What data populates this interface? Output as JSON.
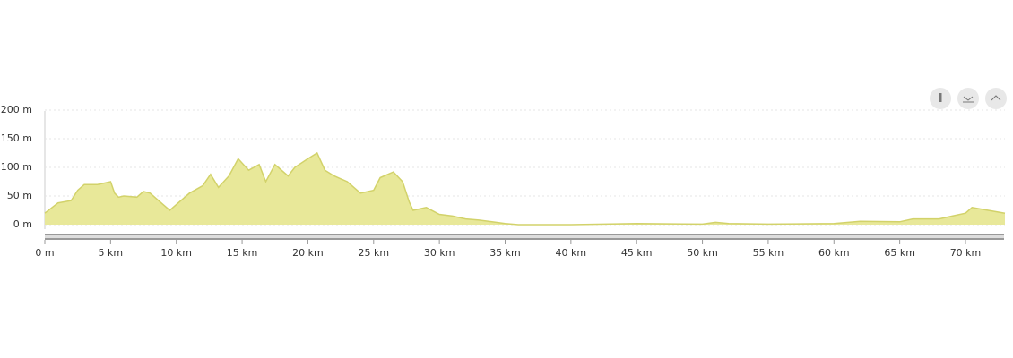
{
  "chart_data": {
    "type": "area",
    "color": "#e8e899",
    "line_color": "#d2d26a",
    "grid": true,
    "x": [
      0,
      1,
      2,
      2.5,
      3,
      4,
      5,
      5.3,
      5.6,
      6,
      7,
      7.5,
      8,
      9,
      9.5,
      10,
      11,
      12,
      12.6,
      13.2,
      14,
      14.7,
      15.5,
      16.3,
      16.8,
      17.5,
      18.5,
      19,
      20,
      20.7,
      21.3,
      22,
      23,
      24,
      25,
      25.5,
      26.5,
      27.2,
      27.7,
      28,
      29,
      30,
      31,
      32,
      33,
      34,
      35,
      36,
      40,
      45,
      50,
      51,
      52,
      55,
      60,
      62,
      65,
      66,
      68,
      69,
      70,
      70.5,
      71,
      73
    ],
    "values": [
      20,
      38,
      42,
      60,
      70,
      70,
      75,
      55,
      48,
      50,
      48,
      58,
      55,
      35,
      25,
      35,
      55,
      68,
      88,
      65,
      85,
      115,
      95,
      105,
      75,
      105,
      85,
      100,
      115,
      125,
      95,
      85,
      75,
      55,
      60,
      82,
      92,
      75,
      40,
      25,
      30,
      18,
      15,
      10,
      8,
      5,
      2,
      0,
      0,
      2,
      1,
      4,
      2,
      1,
      2,
      6,
      5,
      10,
      10,
      15,
      20,
      30,
      28,
      20
    ],
    "xlim": [
      0,
      73
    ],
    "ylim": [
      0,
      200
    ],
    "xticks": [
      {
        "value": 0,
        "label": "0 m"
      },
      {
        "value": 5,
        "label": "5 km"
      },
      {
        "value": 10,
        "label": "10 km"
      },
      {
        "value": 15,
        "label": "15 km"
      },
      {
        "value": 20,
        "label": "20 km"
      },
      {
        "value": 25,
        "label": "25 km"
      },
      {
        "value": 30,
        "label": "30 km"
      },
      {
        "value": 35,
        "label": "35 km"
      },
      {
        "value": 40,
        "label": "40 km"
      },
      {
        "value": 45,
        "label": "45 km"
      },
      {
        "value": 50,
        "label": "50 km"
      },
      {
        "value": 55,
        "label": "55 km"
      },
      {
        "value": 60,
        "label": "60 km"
      },
      {
        "value": 65,
        "label": "65 km"
      },
      {
        "value": 70,
        "label": "70 km"
      }
    ],
    "yticks": [
      {
        "value": 0,
        "label": "0 m"
      },
      {
        "value": 50,
        "label": "50 m"
      },
      {
        "value": 100,
        "label": "100 m"
      },
      {
        "value": 150,
        "label": "150 m"
      },
      {
        "value": 200,
        "label": "200 m"
      }
    ]
  }
}
